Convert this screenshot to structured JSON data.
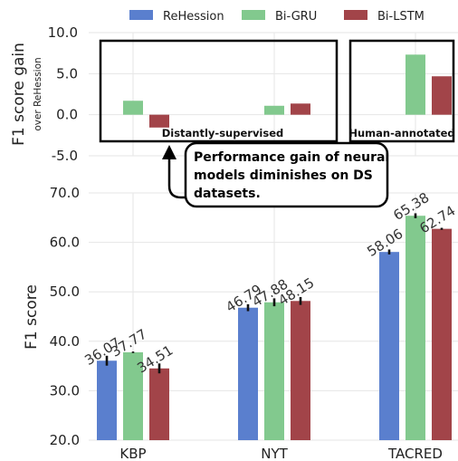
{
  "chart_data": [
    {
      "type": "bar",
      "ylabel": "F1 score gain",
      "ylabel_sub": "over ReHession",
      "ylim": [
        -5,
        10
      ],
      "yticks": [
        "10.0",
        "5.0",
        "0.0",
        "-5.0"
      ],
      "categories": [
        "KBP",
        "NYT",
        "TACRED"
      ],
      "series": [
        {
          "name": "ReHession",
          "values": [
            0,
            0,
            0
          ],
          "color": "#5a7fce"
        },
        {
          "name": "Bi-GRU",
          "values": [
            1.7,
            1.09,
            7.32
          ],
          "color": "#82c98e"
        },
        {
          "name": "Bi-LSTM",
          "values": [
            -1.56,
            1.36,
            4.68
          ],
          "color": "#a24449"
        }
      ],
      "group_labels": [
        "Distantly-supervised",
        "Human-annotated"
      ],
      "annotation": [
        "Performance gain of neural",
        "models diminishes on DS",
        "datasets."
      ],
      "grid": true,
      "legend": "top"
    },
    {
      "type": "bar",
      "ylabel": "F1 score",
      "ylim": [
        20,
        70
      ],
      "yticks": [
        "70.0",
        "60.0",
        "50.0",
        "40.0",
        "30.0",
        "20.0"
      ],
      "categories": [
        "KBP",
        "NYT",
        "TACRED"
      ],
      "series": [
        {
          "name": "ReHession",
          "values": [
            36.07,
            46.79,
            58.06
          ],
          "labels": [
            "36.07",
            "46.79",
            "58.06"
          ],
          "errors": [
            1.0,
            0.7,
            0.5
          ],
          "color": "#5a7fce"
        },
        {
          "name": "Bi-GRU",
          "values": [
            37.77,
            47.88,
            65.38
          ],
          "labels": [
            "37.77",
            "47.88",
            "65.38"
          ],
          "errors": [
            0.15,
            0.8,
            0.5
          ],
          "color": "#82c98e"
        },
        {
          "name": "Bi-LSTM",
          "values": [
            34.51,
            48.15,
            62.74
          ],
          "labels": [
            "34.51",
            "48.15",
            "62.74"
          ],
          "errors": [
            1.0,
            0.8,
            0.2
          ],
          "color": "#a24449"
        }
      ],
      "grid": true
    }
  ]
}
